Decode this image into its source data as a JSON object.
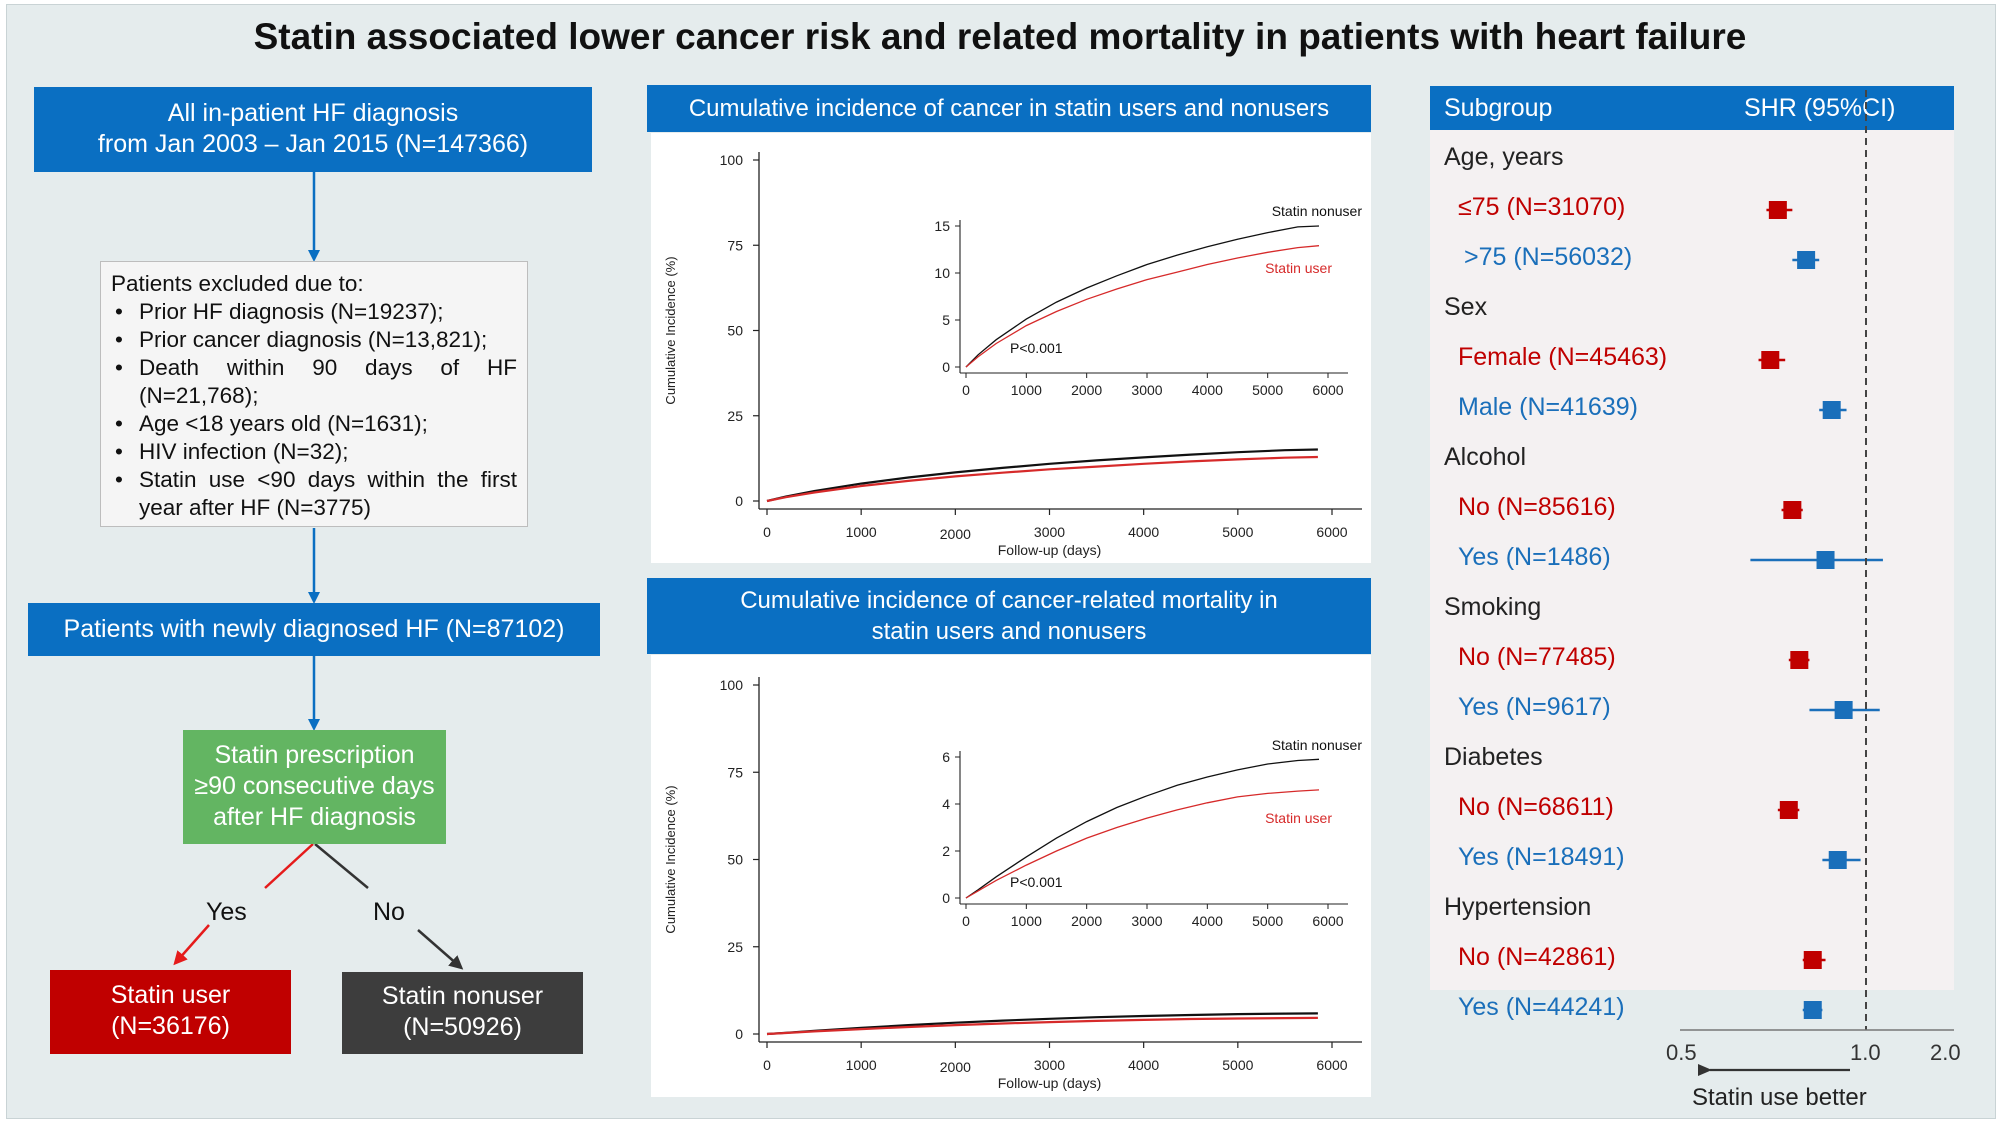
{
  "title": "Statin associated lower cancer risk and related mortality in patients with heart failure",
  "colors": {
    "blue": "#0a6fc2",
    "green": "#63b562",
    "red": "#c00000",
    "dark": "#3d3d3d",
    "nonuser_line": "#111111",
    "user_line": "#d62a2a"
  },
  "flow": {
    "all_line1": "All in-patient HF diagnosis",
    "all_line2": "from Jan 2003 – Jan 2015 (N=147366)",
    "excluded_title": "Patients excluded due to:",
    "excluded_items": [
      "Prior HF diagnosis (N=19237);",
      "Prior cancer diagnosis (N=13,821);",
      "Death within 90 days of HF (N=21,768);",
      "Age <18 years old (N=1631);",
      "HIV infection (N=32);",
      "Statin use <90 days within the first year after HF (N=3775)"
    ],
    "newly": "Patients with newly diagnosed HF (N=87102)",
    "statin_line1": "Statin prescription",
    "statin_line2": "≥90 consecutive days",
    "statin_line3": "after HF diagnosis",
    "yes": "Yes",
    "no": "No",
    "user_line1": "Statin user",
    "user_line2": "(N=36176)",
    "nonuser_line1": "Statin nonuser",
    "nonuser_line2": "(N=50926)"
  },
  "chart_data": [
    {
      "type": "line",
      "title": "Cumulative incidence of cancer in statin users and nonusers",
      "xlabel": "Follow-up (days)",
      "ylabel": "Cumulative Incidence (%)",
      "xlim": [
        0,
        6000
      ],
      "ylim": [
        0,
        100
      ],
      "xticks": [
        0,
        1000,
        2000,
        3000,
        4000,
        5000,
        6000
      ],
      "yticks": [
        0,
        25,
        50,
        75,
        100
      ],
      "x": [
        0,
        200,
        500,
        1000,
        1500,
        2000,
        2500,
        3000,
        3500,
        4000,
        4500,
        5000,
        5500,
        5850
      ],
      "series": [
        {
          "name": "Statin nonuser",
          "values": [
            0,
            1.3,
            2.9,
            5.1,
            6.9,
            8.4,
            9.7,
            10.9,
            11.9,
            12.8,
            13.6,
            14.3,
            14.9,
            15.1
          ]
        },
        {
          "name": "Statin user",
          "values": [
            0,
            1.1,
            2.5,
            4.4,
            5.9,
            7.2,
            8.3,
            9.3,
            10.1,
            10.9,
            11.6,
            12.2,
            12.7,
            12.9
          ]
        }
      ],
      "inset": {
        "ylim": [
          0,
          15
        ],
        "yticks": [
          0,
          5,
          10,
          15
        ],
        "xticks": [
          0,
          1000,
          2000,
          3000,
          4000,
          5000,
          6000
        ],
        "annotation": "P<0.001"
      }
    },
    {
      "type": "line",
      "title_line1": "Cumulative incidence of cancer-related mortality in",
      "title_line2": "statin users and nonusers",
      "xlabel": "Follow-up (days)",
      "ylabel": "Cumulative Incidence (%)",
      "xlim": [
        0,
        6000
      ],
      "ylim": [
        0,
        100
      ],
      "xticks": [
        0,
        1000,
        2000,
        3000,
        4000,
        5000,
        6000
      ],
      "yticks": [
        0,
        25,
        50,
        75,
        100
      ],
      "x": [
        0,
        200,
        500,
        1000,
        1500,
        2000,
        2500,
        3000,
        3500,
        4000,
        4500,
        5000,
        5500,
        5850
      ],
      "series": [
        {
          "name": "Statin nonuser",
          "values": [
            0,
            0.35,
            0.9,
            1.75,
            2.55,
            3.25,
            3.85,
            4.35,
            4.8,
            5.15,
            5.45,
            5.7,
            5.85,
            5.9
          ]
        },
        {
          "name": "Statin user",
          "values": [
            0,
            0.3,
            0.75,
            1.4,
            2.0,
            2.55,
            3.0,
            3.4,
            3.75,
            4.05,
            4.3,
            4.45,
            4.55,
            4.6
          ]
        }
      ],
      "inset": {
        "ylim": [
          0,
          6
        ],
        "yticks": [
          0,
          2,
          4,
          6
        ],
        "xticks": [
          0,
          1000,
          2000,
          3000,
          4000,
          5000,
          6000
        ],
        "annotation": "P<0.001"
      }
    },
    {
      "type": "forest",
      "header_left": "Subgroup",
      "header_right": "SHR (95%CI)",
      "xlim": [
        0.5,
        2.0
      ],
      "xticks": [
        "0.5",
        "1.0",
        "2.0"
      ],
      "reference": 1.0,
      "arrow_label": "Statin use better",
      "groups": [
        {
          "name": "Age, years",
          "rows": [
            {
              "label": "≤75 (N=31070)",
              "color": "#c00000",
              "est": 0.72,
              "lo": 0.69,
              "hi": 0.76
            },
            {
              "label": ">75 (N=56032)",
              "color": "#1a6fba",
              "est": 0.8,
              "lo": 0.76,
              "hi": 0.84
            }
          ]
        },
        {
          "name": "Sex",
          "rows": [
            {
              "label": "Female (N=45463)",
              "color": "#c00000",
              "est": 0.7,
              "lo": 0.67,
              "hi": 0.74
            },
            {
              "label": "Male (N=41639)",
              "color": "#1a6fba",
              "est": 0.88,
              "lo": 0.84,
              "hi": 0.93
            }
          ]
        },
        {
          "name": "Alcohol",
          "rows": [
            {
              "label": "No (N=85616)",
              "color": "#c00000",
              "est": 0.76,
              "lo": 0.73,
              "hi": 0.79
            },
            {
              "label": "Yes (N=1486)",
              "color": "#1a6fba",
              "est": 0.86,
              "lo": 0.65,
              "hi": 1.15
            }
          ]
        },
        {
          "name": "Smoking",
          "rows": [
            {
              "label": "No (N=77485)",
              "color": "#c00000",
              "est": 0.78,
              "lo": 0.75,
              "hi": 0.81
            },
            {
              "label": "Yes (N=9617)",
              "color": "#1a6fba",
              "est": 0.92,
              "lo": 0.81,
              "hi": 1.12
            }
          ]
        },
        {
          "name": "Diabetes",
          "rows": [
            {
              "label": "No (N=68611)",
              "color": "#c00000",
              "est": 0.75,
              "lo": 0.72,
              "hi": 0.78
            },
            {
              "label": "Yes (N=18491)",
              "color": "#1a6fba",
              "est": 0.9,
              "lo": 0.85,
              "hi": 0.98
            }
          ]
        },
        {
          "name": "Hypertension",
          "rows": [
            {
              "label": "No (N=42861)",
              "color": "#c00000",
              "est": 0.82,
              "lo": 0.79,
              "hi": 0.86
            },
            {
              "label": "Yes (N=44241)",
              "color": "#1a6fba",
              "est": 0.82,
              "lo": 0.79,
              "hi": 0.85
            }
          ]
        }
      ]
    }
  ]
}
